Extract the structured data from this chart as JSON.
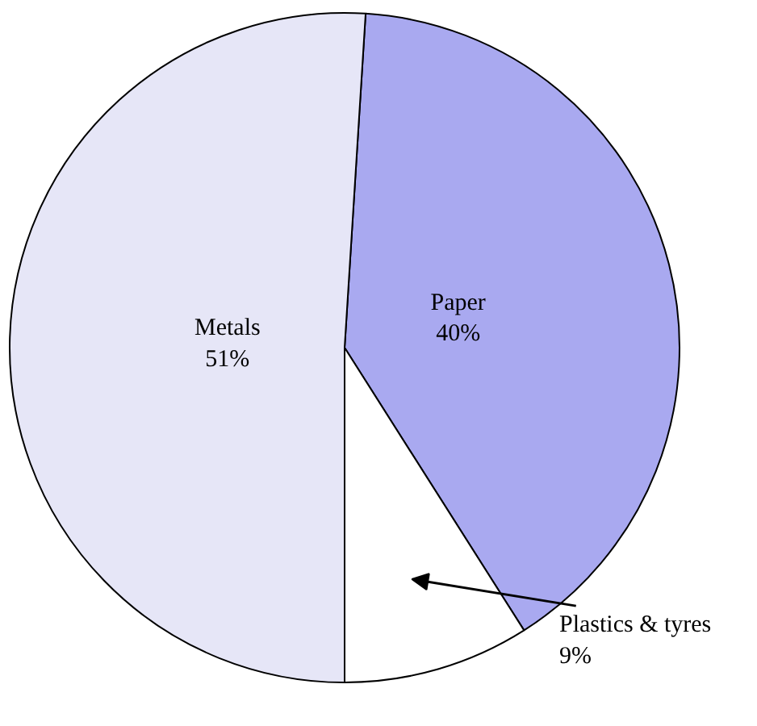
{
  "chart_data": {
    "type": "pie",
    "categories": [
      "Paper",
      "Plastics & tyres",
      "Metals"
    ],
    "values": [
      40,
      9,
      51
    ],
    "colors": [
      "#a9a9f0",
      "#ffffff",
      "#e6e6f7"
    ],
    "value_labels": [
      "40%",
      "9%",
      "51%"
    ]
  }
}
